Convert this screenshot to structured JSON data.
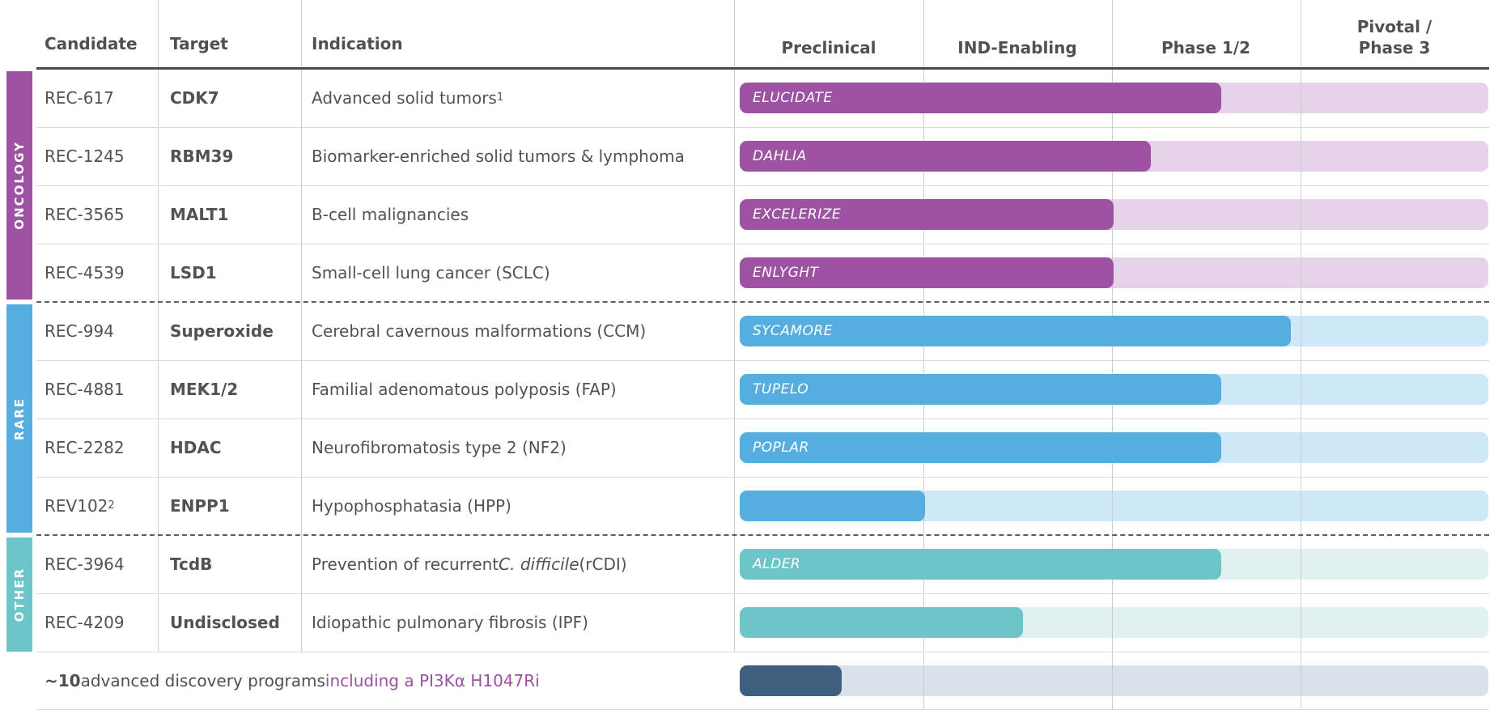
{
  "header": {
    "candidate": "Candidate",
    "target": "Target",
    "indication": "Indication",
    "phases": [
      "Preclinical",
      "IND-Enabling",
      "Phase 1/2",
      "Pivotal /\nPhase 3"
    ]
  },
  "chart_data": {
    "type": "bar",
    "orientation": "horizontal",
    "x_axis_categories": [
      "Preclinical",
      "IND-Enabling",
      "Phase 1/2",
      "Pivotal / Phase 3"
    ],
    "xlim": [
      0,
      4
    ],
    "units_note": "progress measured in phase-column widths completed (0 = start of Preclinical, 4 = end of Pivotal/Phase 3)",
    "grid": true,
    "groups": [
      {
        "name": "ONCOLOGY",
        "color": "#9d53a1",
        "track_color": "#e6d2e9",
        "rows": [
          {
            "candidate": "REC-617",
            "candidate_sup": "",
            "target": "CDK7",
            "indication": [
              {
                "t": "Advanced solid tumors"
              },
              {
                "t": "1",
                "sup": true
              }
            ],
            "trial": "ELUCIDATE",
            "progress": 2.58
          },
          {
            "candidate": "REC-1245",
            "candidate_sup": "",
            "target": "RBM39",
            "indication": [
              {
                "t": "Biomarker-enriched solid tumors & lymphoma"
              }
            ],
            "trial": "DAHLIA",
            "progress": 2.21
          },
          {
            "candidate": "REC-3565",
            "candidate_sup": "",
            "target": "MALT1",
            "indication": [
              {
                "t": "B-cell malignancies"
              }
            ],
            "trial": "EXCELERIZE",
            "progress": 2.01
          },
          {
            "candidate": "REC-4539",
            "candidate_sup": "",
            "target": "LSD1",
            "indication": [
              {
                "t": "Small-cell lung cancer (SCLC)"
              }
            ],
            "trial": "ENLYGHT",
            "progress": 2.01
          }
        ]
      },
      {
        "name": "RARE",
        "color": "#56ade0",
        "track_color": "#cde8f9",
        "rows": [
          {
            "candidate": "REC-994",
            "candidate_sup": "",
            "target": "Superoxide",
            "indication": [
              {
                "t": "Cerebral cavernous malformations (CCM)"
              }
            ],
            "trial": "SYCAMORE",
            "progress": 2.95
          },
          {
            "candidate": "REC-4881",
            "candidate_sup": "",
            "target": "MEK1/2",
            "indication": [
              {
                "t": "Familial adenomatous polyposis (FAP)"
              }
            ],
            "trial": "TUPELO",
            "progress": 2.58
          },
          {
            "candidate": "REC-2282",
            "candidate_sup": "",
            "target": "HDAC",
            "indication": [
              {
                "t": "Neurofibromatosis type 2 (NF2)"
              }
            ],
            "trial": "POPLAR",
            "progress": 2.58
          },
          {
            "candidate": "REV102",
            "candidate_sup": "2",
            "target": "ENPP1",
            "indication": [
              {
                "t": "Hypophosphatasia (HPP)"
              }
            ],
            "trial": "",
            "progress": 1.01
          }
        ]
      },
      {
        "name": "OTHER",
        "color": "#6ec5c8",
        "track_color": "#e1f1f2",
        "rows": [
          {
            "candidate": "REC-3964",
            "candidate_sup": "",
            "target": "TcdB",
            "indication": [
              {
                "t": "Prevention of recurrent "
              },
              {
                "t": "C. difficile",
                "italic": true
              },
              {
                "t": " (rCDI)"
              }
            ],
            "trial": "ALDER",
            "progress": 2.58
          },
          {
            "candidate": "REC-4209",
            "candidate_sup": "",
            "target": "Undisclosed",
            "indication": [
              {
                "t": "Idiopathic pulmonary fibrosis (IPF)"
              }
            ],
            "trial": "",
            "progress": 1.53
          }
        ]
      }
    ],
    "discovery_row": {
      "text_bold": "~10",
      "text_plain": " advanced discovery programs ",
      "text_highlight": "including a PI3Kα H1047Ri",
      "highlight_color": "#9c51a1",
      "bar_color": "#3f5f7e",
      "track_color": "#d9e2ea",
      "progress": 0.57
    }
  }
}
